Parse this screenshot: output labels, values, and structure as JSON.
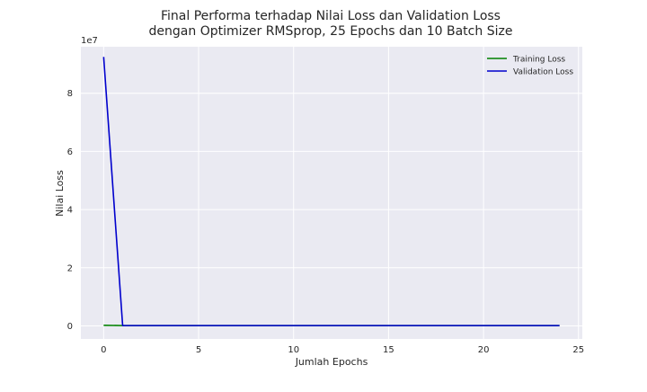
{
  "chart_data": {
    "type": "line",
    "title_line1": "Final Performa terhadap Nilai Loss dan Validation Loss",
    "title_line2": "dengan Optimizer RMSprop, 25 Epochs dan 10 Batch Size",
    "xlabel": "Jumlah Epochs",
    "ylabel": "Nilai Loss",
    "y_offset_label": "1e7",
    "y_multiplier": 10000000,
    "xlim": [
      -1.2,
      25.2
    ],
    "ylim": [
      -0.45,
      9.6
    ],
    "x_ticks": [
      0,
      5,
      10,
      15,
      20,
      25
    ],
    "x_tick_labels": [
      "0",
      "5",
      "10",
      "15",
      "20",
      "25"
    ],
    "y_ticks": [
      0,
      2,
      4,
      6,
      8
    ],
    "y_tick_labels": [
      "0",
      "2",
      "4",
      "6",
      "8"
    ],
    "grid": true,
    "legend_position": "top-right",
    "x": [
      0,
      1,
      2,
      3,
      4,
      5,
      6,
      7,
      8,
      9,
      10,
      11,
      12,
      13,
      14,
      15,
      16,
      17,
      18,
      19,
      20,
      21,
      22,
      23,
      24
    ],
    "series": [
      {
        "name": "Training Loss",
        "color": "#008000",
        "values": [
          0.02,
          0.01,
          0.01,
          0.01,
          0.01,
          0.01,
          0.01,
          0.01,
          0.01,
          0.01,
          0.01,
          0.01,
          0.01,
          0.01,
          0.01,
          0.01,
          0.01,
          0.01,
          0.01,
          0.01,
          0.01,
          0.01,
          0.01,
          0.01,
          0.01
        ]
      },
      {
        "name": "Validation Loss",
        "color": "#0000cd",
        "values": [
          9.25,
          0.01,
          0.01,
          0.01,
          0.01,
          0.01,
          0.01,
          0.01,
          0.01,
          0.01,
          0.01,
          0.01,
          0.01,
          0.01,
          0.01,
          0.01,
          0.01,
          0.01,
          0.01,
          0.01,
          0.01,
          0.01,
          0.01,
          0.01,
          0.01
        ]
      }
    ]
  }
}
